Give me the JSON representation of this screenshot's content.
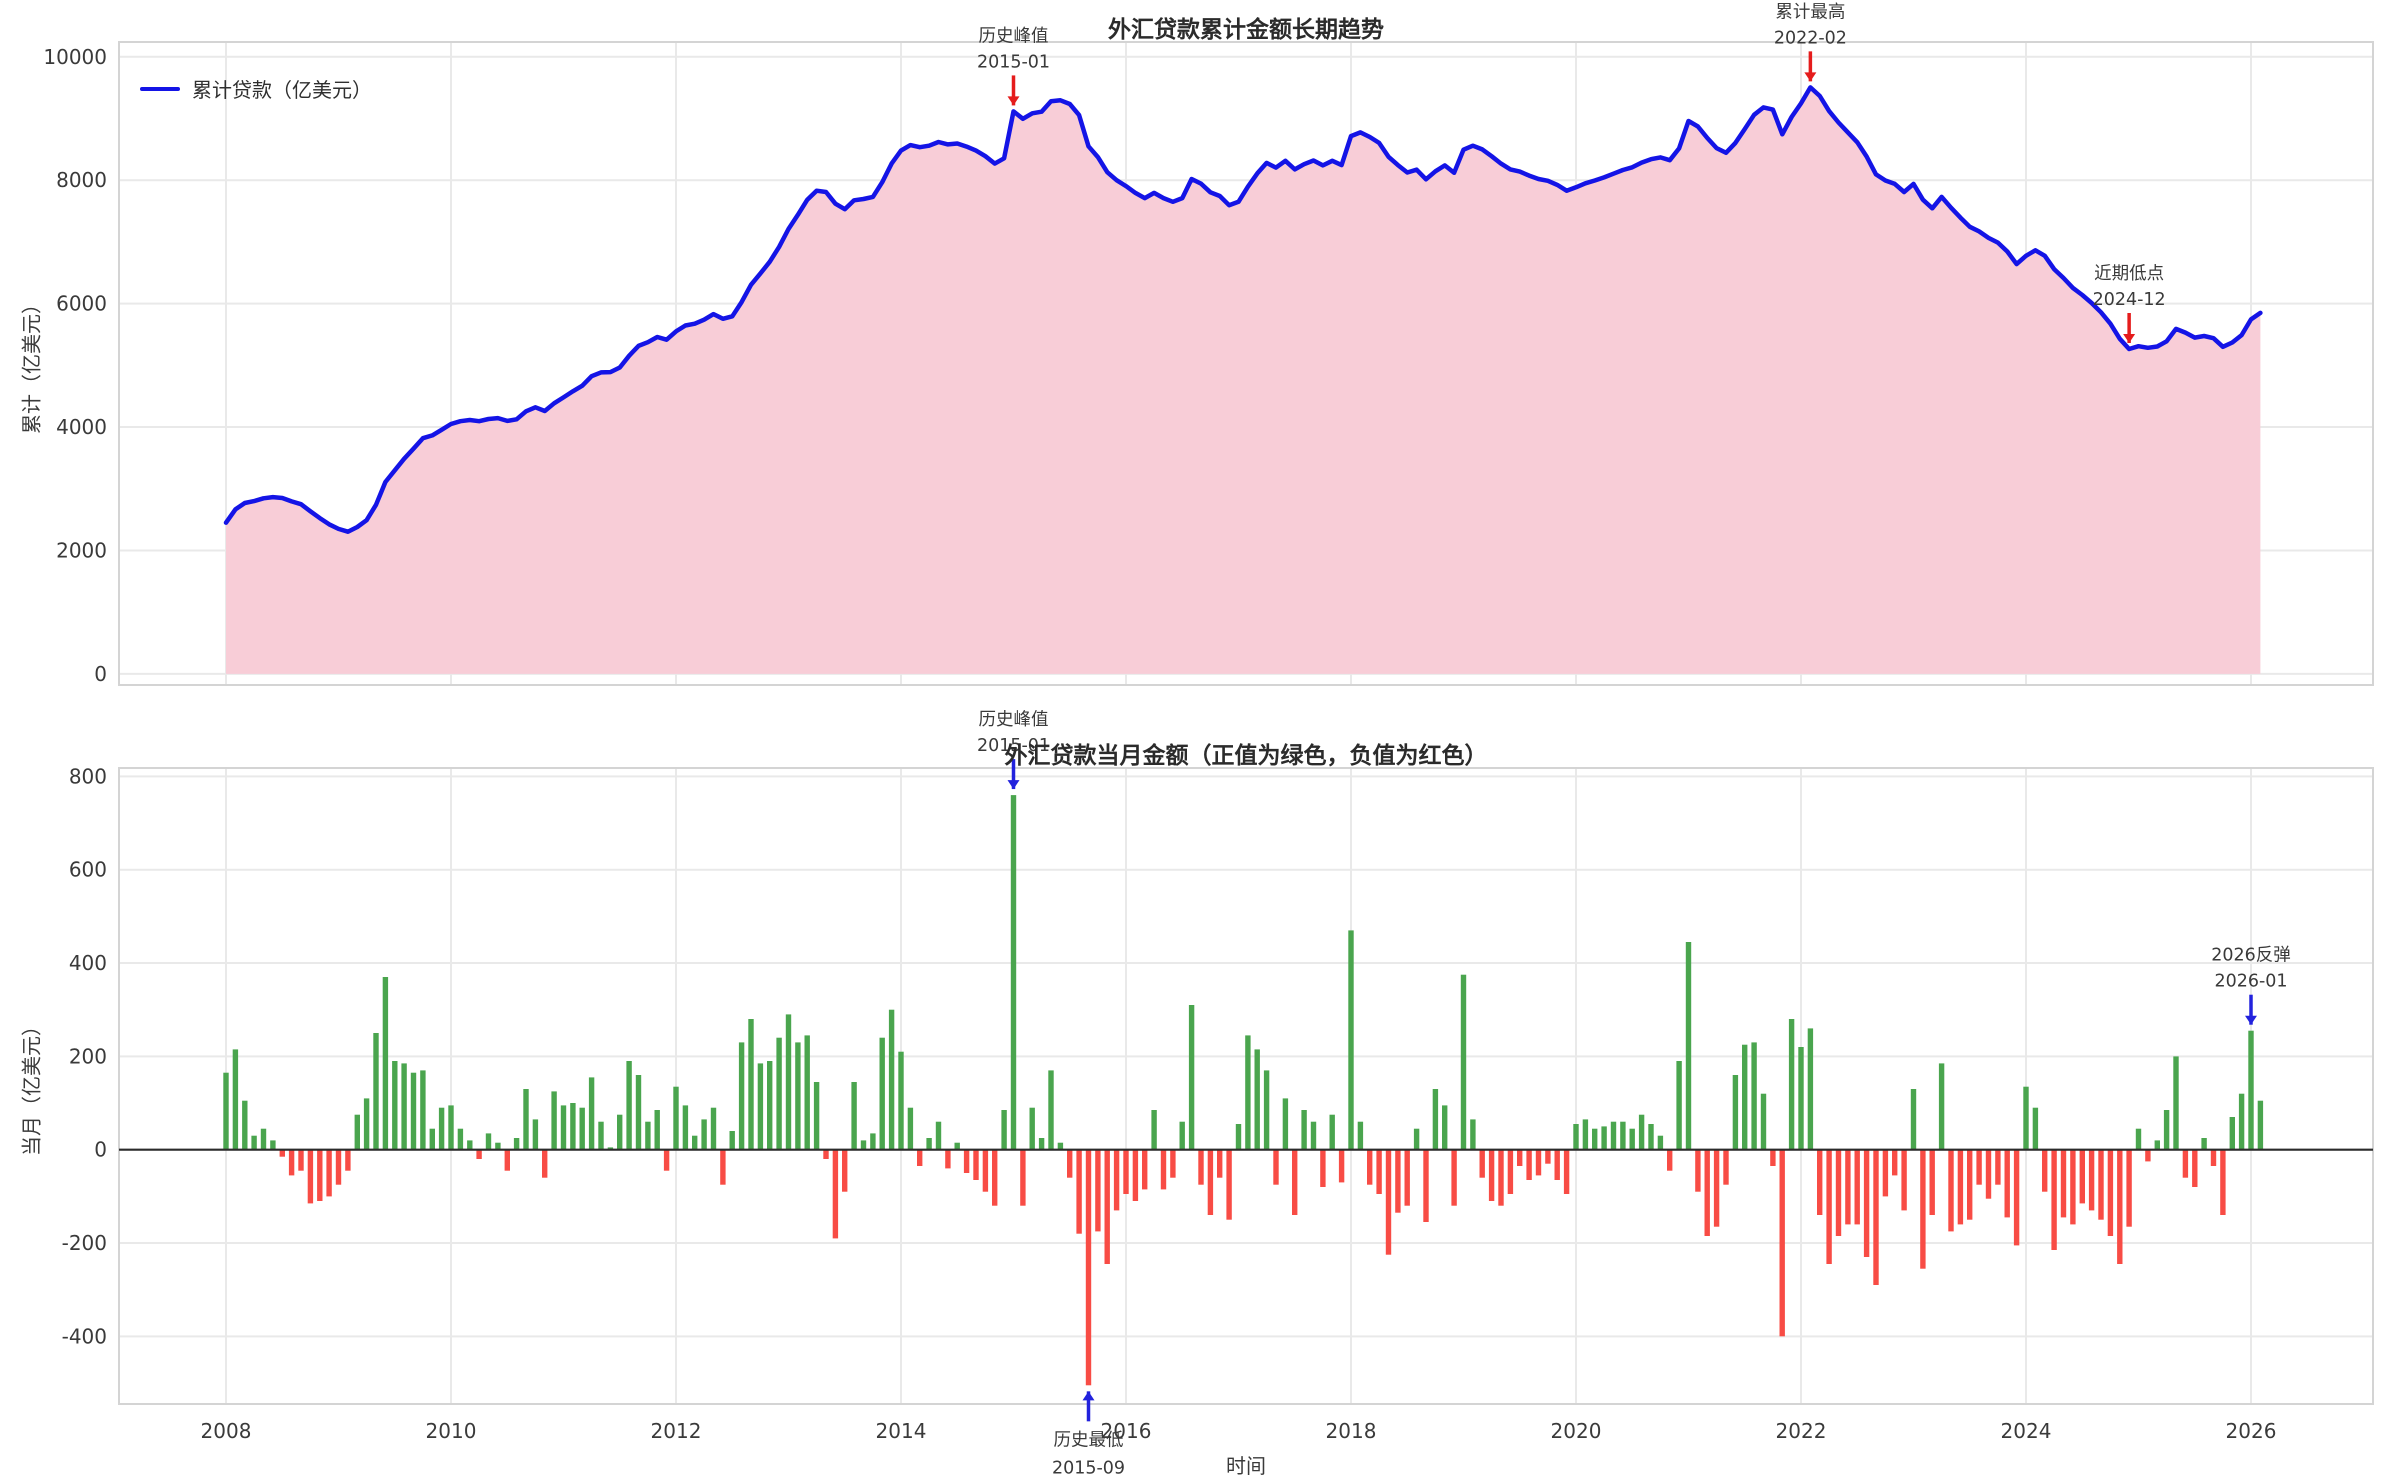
{
  "figure": {
    "background": "#ffffff",
    "grid_color": "#e9e9e9",
    "spine_color": "#d4d4d4",
    "tick_color": "#3a3a3a"
  },
  "x_axis": {
    "start": "2008-01",
    "end": "2026-02",
    "tick_years": [
      2008,
      2010,
      2012,
      2014,
      2016,
      2018,
      2020,
      2022,
      2024,
      2026
    ],
    "tick_labels": [
      "2008",
      "2010",
      "2012",
      "2014",
      "2016",
      "2018",
      "2020",
      "2022",
      "2024",
      "2026"
    ]
  },
  "chart_data": [
    {
      "type": "area-line",
      "title": "外汇贷款累计金额长期趋势",
      "ylabel": "累计（亿美元）",
      "legend": "累计贷款（亿美元）",
      "line_color": "#1414e6",
      "fill_color": "#f8cdd7",
      "y_ticks": [
        0,
        2000,
        4000,
        6000,
        8000,
        10000
      ],
      "ylim": [
        -180,
        10240
      ],
      "x_start": "2008-01",
      "values": [
        2450,
        2665,
        2770,
        2800,
        2845,
        2865,
        2850,
        2795,
        2750,
        2635,
        2525,
        2425,
        2350,
        2305,
        2380,
        2490,
        2740,
        3110,
        3300,
        3485,
        3650,
        3820,
        3865,
        3955,
        4050,
        4095,
        4115,
        4095,
        4130,
        4145,
        4100,
        4125,
        4255,
        4320,
        4260,
        4385,
        4480,
        4580,
        4670,
        4825,
        4885,
        4890,
        4965,
        5155,
        5315,
        5375,
        5460,
        5415,
        5550,
        5645,
        5675,
        5740,
        5830,
        5755,
        5795,
        6025,
        6305,
        6490,
        6680,
        6920,
        7210,
        7440,
        7685,
        7830,
        7810,
        7620,
        7530,
        7675,
        7695,
        7730,
        7970,
        8270,
        8480,
        8570,
        8535,
        8560,
        8620,
        8580,
        8595,
        8545,
        8480,
        8390,
        8270,
        8355,
        9115,
        8995,
        9085,
        9110,
        9280,
        9295,
        9235,
        9055,
        8550,
        8375,
        8130,
        8000,
        7905,
        7795,
        7710,
        7795,
        7710,
        7650,
        7710,
        8020,
        7945,
        7805,
        7745,
        7595,
        7650,
        7895,
        8110,
        8280,
        8205,
        8315,
        8175,
        8260,
        8320,
        8240,
        8315,
        8245,
        8715,
        8775,
        8700,
        8605,
        8380,
        8245,
        8125,
        8170,
        8015,
        8145,
        8240,
        8120,
        8495,
        8560,
        8500,
        8390,
        8270,
        8175,
        8140,
        8075,
        8020,
        7990,
        7925,
        7830,
        7885,
        7950,
        7995,
        8045,
        8105,
        8165,
        8210,
        8285,
        8340,
        8370,
        8325,
        8515,
        8960,
        8870,
        8685,
        8520,
        8445,
        8605,
        8830,
        9060,
        9180,
        9145,
        8745,
        9025,
        9245,
        9505,
        9365,
        9120,
        8935,
        8775,
        8615,
        8385,
        8095,
        7995,
        7940,
        7810,
        7940,
        7685,
        7545,
        7730,
        7555,
        7395,
        7245,
        7170,
        7065,
        6990,
        6845,
        6640,
        6775,
        6865,
        6775,
        6560,
        6415,
        6255,
        6140,
        6010,
        5860,
        5675,
        5430,
        5265,
        5310,
        5285,
        5305,
        5390,
        5590,
        5530,
        5450,
        5475,
        5440,
        5300,
        5370,
        5490,
        5745,
        5850
      ],
      "annotations": [
        {
          "lines": [
            "历史峰值",
            "2015-01"
          ],
          "month": "2015-01",
          "value": 9115,
          "dir": "down",
          "color": "#e51c1c"
        },
        {
          "lines": [
            "累计最高",
            "2022-02"
          ],
          "month": "2022-02",
          "value": 9505,
          "dir": "down",
          "color": "#e51c1c"
        },
        {
          "lines": [
            "近期低点",
            "2024-12"
          ],
          "month": "2024-12",
          "value": 5265,
          "dir": "down",
          "color": "#e51c1c"
        }
      ]
    },
    {
      "type": "bar",
      "title": "外汇贷款当月金额（正值为绿色，负值为红色）",
      "ylabel": "当月（亿美元）",
      "xlabel": "时间",
      "pos_color": "#4aa54e",
      "neg_color": "#f84c45",
      "zero_line_color": "#2b2b2b",
      "y_ticks": [
        -400,
        -200,
        0,
        200,
        400,
        600,
        800
      ],
      "ylim": [
        -545,
        818
      ],
      "x_start": "2008-01",
      "values": [
        165,
        215,
        105,
        30,
        45,
        20,
        -15,
        -55,
        -45,
        -115,
        -110,
        -100,
        -75,
        -45,
        75,
        110,
        250,
        370,
        190,
        185,
        165,
        170,
        45,
        90,
        95,
        45,
        20,
        -20,
        35,
        15,
        -45,
        25,
        130,
        65,
        -60,
        125,
        95,
        100,
        90,
        155,
        60,
        5,
        75,
        190,
        160,
        60,
        85,
        -45,
        135,
        95,
        30,
        65,
        90,
        -75,
        40,
        230,
        280,
        185,
        190,
        240,
        290,
        230,
        245,
        145,
        -20,
        -190,
        -90,
        145,
        20,
        35,
        240,
        300,
        210,
        90,
        -35,
        25,
        60,
        -40,
        15,
        -50,
        -65,
        -90,
        -120,
        85,
        760,
        -120,
        90,
        25,
        170,
        15,
        -60,
        -180,
        -505,
        -175,
        -245,
        -130,
        -95,
        -110,
        -85,
        85,
        -85,
        -60,
        60,
        310,
        -75,
        -140,
        -60,
        -150,
        55,
        245,
        215,
        170,
        -75,
        110,
        -140,
        85,
        60,
        -80,
        75,
        -70,
        470,
        60,
        -75,
        -95,
        -225,
        -135,
        -120,
        45,
        -155,
        130,
        95,
        -120,
        375,
        65,
        -60,
        -110,
        -120,
        -95,
        -35,
        -65,
        -55,
        -30,
        -65,
        -95,
        55,
        65,
        45,
        50,
        60,
        60,
        45,
        75,
        55,
        30,
        -45,
        190,
        445,
        -90,
        -185,
        -165,
        -75,
        160,
        225,
        230,
        120,
        -35,
        -400,
        280,
        220,
        260,
        -140,
        -245,
        -185,
        -160,
        -160,
        -230,
        -290,
        -100,
        -55,
        -130,
        130,
        -255,
        -140,
        185,
        -175,
        -160,
        -150,
        -75,
        -105,
        -75,
        -145,
        -205,
        135,
        90,
        -90,
        -215,
        -145,
        -160,
        -115,
        -130,
        -150,
        -185,
        -245,
        -165,
        45,
        -25,
        20,
        85,
        200,
        -60,
        -80,
        25,
        -35,
        -140,
        70,
        120,
        255,
        105
      ],
      "annotations": [
        {
          "lines": [
            "历史峰值",
            "2015-01"
          ],
          "month": "2015-01",
          "value": 760,
          "dir": "down",
          "color": "#2222dd"
        },
        {
          "lines": [
            "历史最低",
            "2015-09"
          ],
          "month": "2015-09",
          "value": -505,
          "dir": "up",
          "color": "#2222dd"
        },
        {
          "lines": [
            "2026反弹",
            "2026-01"
          ],
          "month": "2026-01",
          "value": 255,
          "dir": "down",
          "color": "#2222dd"
        }
      ]
    }
  ]
}
